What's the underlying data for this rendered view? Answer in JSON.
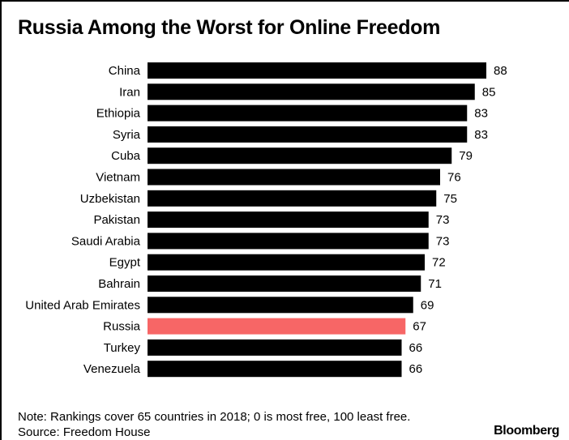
{
  "chart_data": {
    "type": "bar",
    "orientation": "horizontal",
    "title": "Russia Among the Worst for Online Freedom",
    "categories": [
      "China",
      "Iran",
      "Ethiopia",
      "Syria",
      "Cuba",
      "Vietnam",
      "Uzbekistan",
      "Pakistan",
      "Saudi Arabia",
      "Egypt",
      "Bahrain",
      "United Arab Emirates",
      "Russia",
      "Turkey",
      "Venezuela"
    ],
    "values": [
      88,
      85,
      83,
      83,
      79,
      76,
      75,
      73,
      73,
      72,
      71,
      69,
      67,
      66,
      66
    ],
    "highlight": "Russia",
    "colors": {
      "bar": "#000000",
      "highlight": "#f76666"
    },
    "grid": false,
    "data_labels": true
  },
  "notes": {
    "note": "Note: Rankings cover 65 countries in 2018; 0 is most free, 100 least free.",
    "source": "Source: Freedom House"
  },
  "brand": "Bloomberg"
}
